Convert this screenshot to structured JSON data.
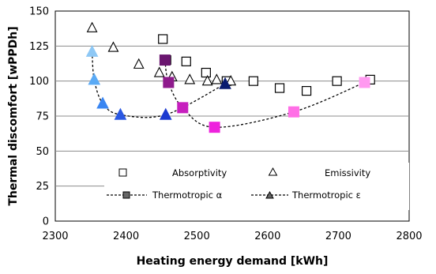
{
  "chart_data": {
    "type": "scatter",
    "xlabel": "Heating energy demand [kWh]",
    "ylabel": "Thermal discomfort [wPPDh]",
    "xlim": [
      2300,
      2800
    ],
    "ylim": [
      0,
      150
    ],
    "x_ticks": [
      "2300",
      "2400",
      "2500",
      "2600",
      "2700",
      "2800"
    ],
    "y_ticks": [
      "0",
      "25",
      "50",
      "75",
      "100",
      "125",
      "150"
    ],
    "grid": "horizontal",
    "legend_placement": "bottom",
    "series": [
      {
        "name": "Absorptivity",
        "marker": "square-open",
        "points": [
          [
            2452,
            130
          ],
          [
            2457,
            115
          ],
          [
            2485,
            114
          ],
          [
            2513,
            106
          ],
          [
            2542,
            100
          ],
          [
            2580,
            100
          ],
          [
            2617,
            95
          ],
          [
            2655,
            93
          ],
          [
            2698,
            100
          ],
          [
            2745,
            101
          ]
        ]
      },
      {
        "name": "Emissivity",
        "marker": "triangle-open",
        "points": [
          [
            2352,
            138
          ],
          [
            2382,
            124
          ],
          [
            2418,
            112
          ],
          [
            2447,
            106
          ],
          [
            2465,
            103
          ],
          [
            2490,
            101
          ],
          [
            2515,
            100
          ],
          [
            2528,
            101
          ],
          [
            2548,
            100
          ]
        ]
      },
      {
        "name": "Thermotropic α",
        "marker": "square-filled",
        "line": "dashed",
        "points": [
          {
            "x": 2455,
            "y": 115,
            "color": "#6b1670"
          },
          {
            "x": 2460,
            "y": 99,
            "color": "#8e1a8c"
          },
          {
            "x": 2480,
            "y": 81,
            "color": "#c71fbe"
          },
          {
            "x": 2525,
            "y": 67,
            "color": "#ee22dd"
          },
          {
            "x": 2637,
            "y": 78,
            "color": "#ff6fe6"
          },
          {
            "x": 2737,
            "y": 99,
            "color": "#ff99f0"
          }
        ]
      },
      {
        "name": "Thermotropic ε",
        "marker": "triangle-filled",
        "line": "dashed",
        "points": [
          {
            "x": 2352,
            "y": 121,
            "color": "#8ec8f5"
          },
          {
            "x": 2355,
            "y": 101,
            "color": "#5aaaf5"
          },
          {
            "x": 2367,
            "y": 84,
            "color": "#3a86f2"
          },
          {
            "x": 2392,
            "y": 76,
            "color": "#2a58e2"
          },
          {
            "x": 2456,
            "y": 76,
            "color": "#1c3ad0"
          },
          {
            "x": 2540,
            "y": 98,
            "color": "#0a1c70"
          }
        ]
      }
    ]
  }
}
